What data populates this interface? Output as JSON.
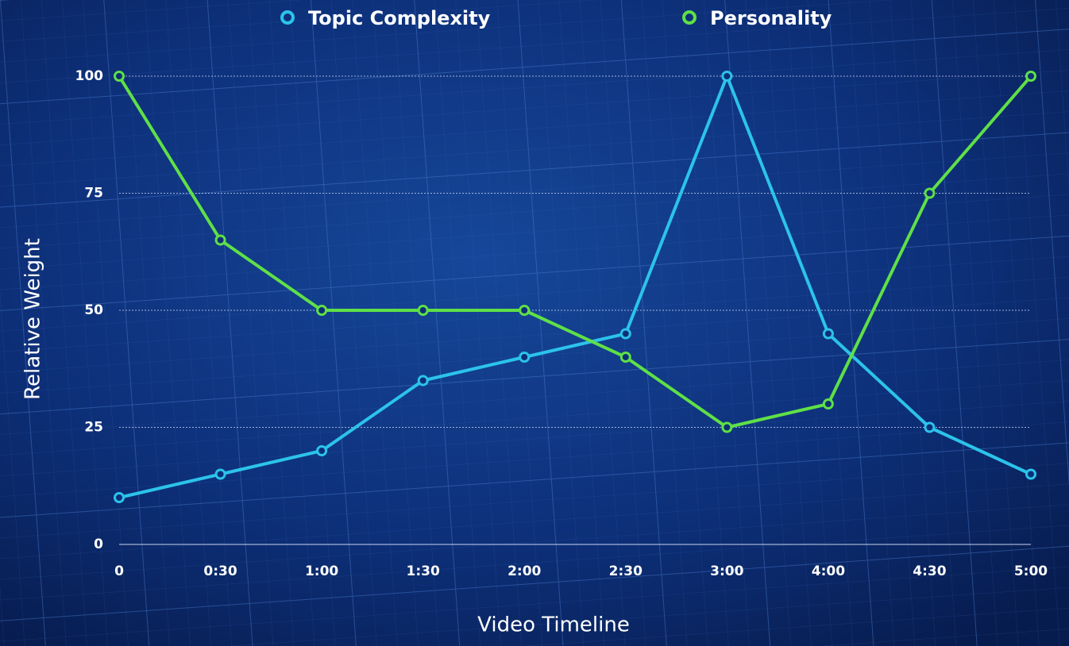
{
  "chart_data": {
    "type": "line",
    "x_label": "Video Timeline",
    "y_label": "Relative Weight",
    "categories": [
      "0",
      "0:30",
      "1:00",
      "1:30",
      "2:00",
      "2:30",
      "3:00",
      "4:00",
      "4:30",
      "5:00"
    ],
    "series": [
      {
        "name": "Topic Complexity",
        "color": "#2cc3ea",
        "values": [
          10,
          15,
          20,
          35,
          40,
          45,
          100,
          45,
          25,
          15
        ]
      },
      {
        "name": "Personality",
        "color": "#5fe047",
        "values": [
          100,
          65,
          50,
          50,
          50,
          40,
          25,
          30,
          75,
          100
        ]
      }
    ],
    "ylim": [
      0,
      100
    ],
    "yticks": [
      0,
      25,
      50,
      75,
      100
    ],
    "grid": true,
    "legend": "top"
  }
}
